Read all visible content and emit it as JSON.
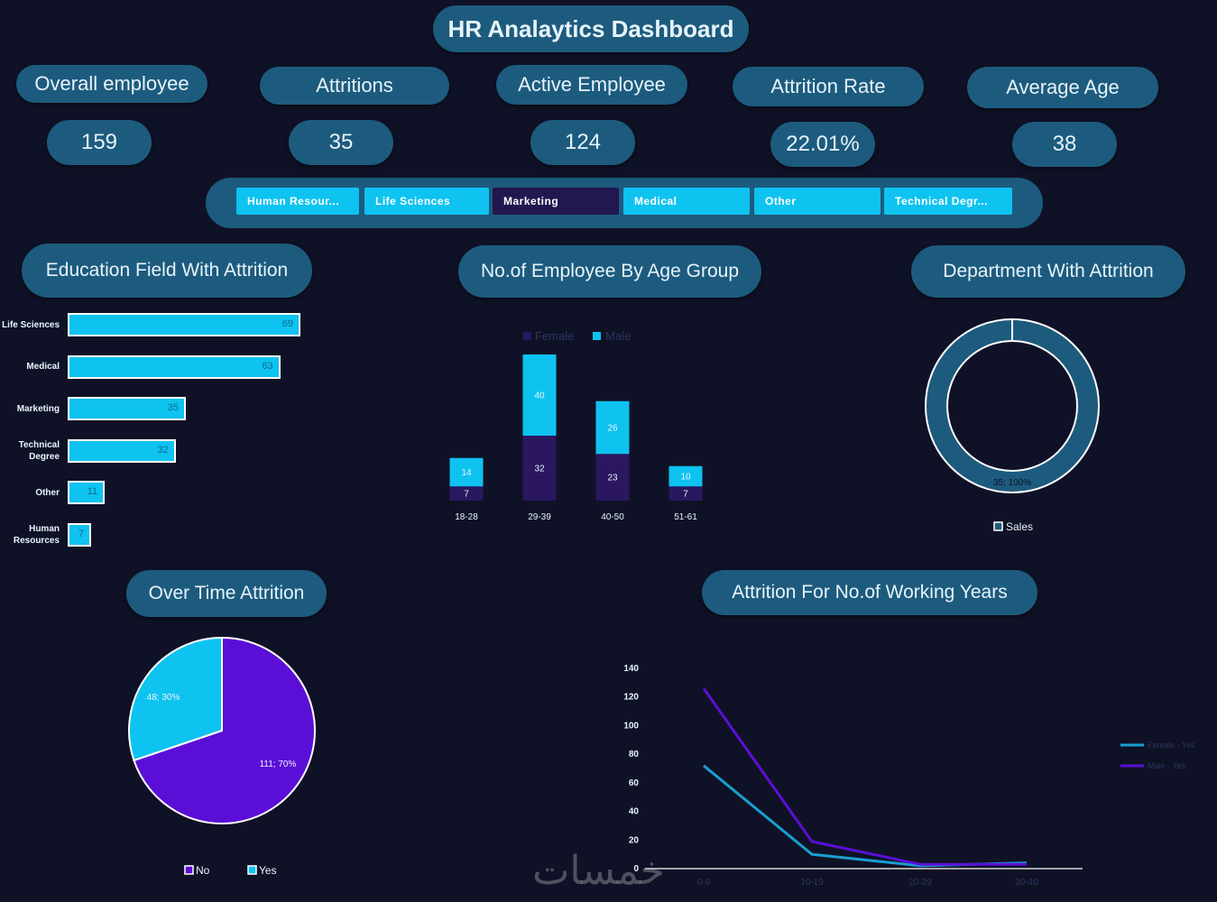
{
  "title": "HR Analaytics Dashboard",
  "kpis": [
    {
      "label": "Overall employee",
      "value": "159"
    },
    {
      "label": "Attritions",
      "value": "35"
    },
    {
      "label": "Active Employee",
      "value": "124"
    },
    {
      "label": "Attrition Rate",
      "value": "22.01%"
    },
    {
      "label": "Average Age",
      "value": "38"
    }
  ],
  "slicer": {
    "items": [
      "Human Resour...",
      "Life Sciences",
      "Marketing",
      "Medical",
      "Other",
      "Technical Degr..."
    ],
    "selected_index": 2
  },
  "sections": {
    "education": "Education Field With Attrition",
    "age_group": "No.of Employee By Age Group",
    "department": "Department With Attrition",
    "overtime": "Over Time Attrition",
    "working_years": "Attrition For No.of Working Years"
  },
  "watermark": "خمسات",
  "colors": {
    "cyan": "#0ec3f0",
    "purple": "#5b0fd6",
    "dark_purple": "#2a1760",
    "teal": "#1d5b7e",
    "bg": "#0f1226"
  },
  "chart_data": [
    {
      "id": "education_field",
      "type": "bar",
      "orientation": "horizontal",
      "categories": [
        "Life Sciences",
        "Medical",
        "Marketing",
        "Technical Degree",
        "Other",
        "Human Resources"
      ],
      "category_labels": [
        [
          "Life Sciences"
        ],
        [
          "Medical"
        ],
        [
          "Marketing"
        ],
        [
          "Technical",
          "Degree"
        ],
        [
          "Other"
        ],
        [
          "Human",
          "Resources"
        ]
      ],
      "values": [
        69,
        63,
        35,
        32,
        11,
        7
      ]
    },
    {
      "id": "age_group",
      "type": "bar",
      "stacked": true,
      "categories": [
        "18-28",
        "29-39",
        "40-50",
        "51-61"
      ],
      "series": [
        {
          "name": "Female",
          "values": [
            7,
            32,
            23,
            7
          ],
          "color": "#2a1760"
        },
        {
          "name": "Male",
          "values": [
            14,
            40,
            26,
            10
          ],
          "color": "#0ec3f0"
        }
      ]
    },
    {
      "id": "department",
      "type": "pie",
      "donut": true,
      "labels": [
        "Sales"
      ],
      "values": [
        35
      ],
      "data_labels": [
        "35; 100%"
      ],
      "legend": [
        "Sales"
      ]
    },
    {
      "id": "overtime",
      "type": "pie",
      "labels": [
        "No",
        "Yes"
      ],
      "values": [
        111,
        48
      ],
      "data_labels": [
        "111; 70%",
        "48; 30%"
      ],
      "colors": [
        "#5b0fd6",
        "#0ec3f0"
      ]
    },
    {
      "id": "working_years",
      "type": "line",
      "x": [
        "0-9",
        "10-19",
        "20-29",
        "30-40"
      ],
      "series": [
        {
          "name": "Female - Yes",
          "values": [
            72,
            10,
            2,
            4
          ],
          "color": "#1a9ed0"
        },
        {
          "name": "Male - Yes",
          "values": [
            126,
            19,
            3,
            3
          ],
          "color": "#5b0fd6"
        }
      ],
      "ylim": [
        0,
        140
      ],
      "yticks": [
        "140",
        "120",
        "100",
        "80",
        "60",
        "40",
        "20",
        "0"
      ],
      "ytick_values": [
        140,
        120,
        100,
        80,
        60,
        40,
        20,
        0
      ]
    }
  ]
}
